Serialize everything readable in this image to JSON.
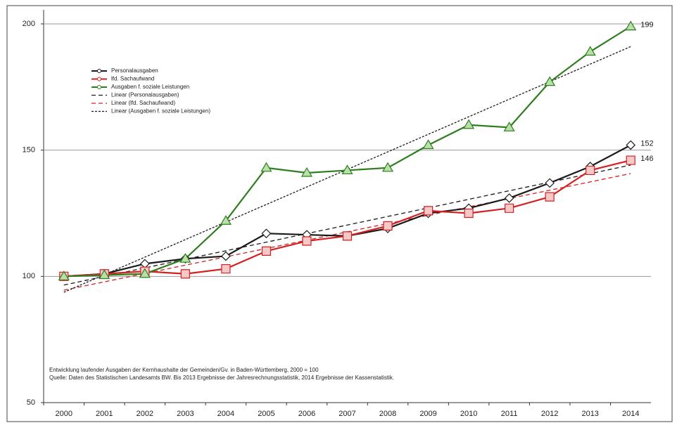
{
  "chart_data": {
    "type": "line",
    "categories": [
      "2000",
      "2001",
      "2002",
      "2003",
      "2004",
      "2005",
      "2006",
      "2007",
      "2008",
      "2009",
      "2010",
      "2011",
      "2012",
      "2013",
      "2014"
    ],
    "series": [
      {
        "name": "Personalausgaben",
        "color": "#1a1a1a",
        "marker": "diamond",
        "values": [
          100,
          101,
          105,
          107,
          108,
          117,
          116.5,
          116,
          119,
          125,
          127,
          131,
          137,
          143.5,
          152
        ]
      },
      {
        "name": "lfd. Sachaufwand",
        "color": "#d42020",
        "marker": "square",
        "values": [
          100,
          101,
          102,
          101,
          103,
          110,
          114,
          116,
          120,
          126,
          125,
          127,
          131.5,
          142,
          146
        ]
      },
      {
        "name": "Ausgaben f. soziale Leistungen",
        "color": "#2e7d1e",
        "marker": "triangle",
        "values": [
          100,
          100.5,
          101,
          107,
          122,
          143,
          141,
          142,
          143,
          152,
          160,
          159,
          177,
          189,
          199
        ]
      }
    ],
    "trendlines": [
      {
        "name": "Linear (Personalausgaben)",
        "of": 0,
        "color": "#1a1a1a",
        "dash": "6 4"
      },
      {
        "name": "Linear (lfd. Sachaufwand)",
        "of": 1,
        "color": "#d42020",
        "dash": "6 4"
      },
      {
        "name": "Linear (Ausgaben f. soziale Leistungen)",
        "of": 2,
        "color": "#1a1a1a",
        "dash": "3 2"
      }
    ],
    "end_labels": [
      2,
      0,
      1
    ],
    "ylim": [
      50,
      200
    ],
    "yticks": [
      50,
      100,
      150,
      200
    ],
    "grid": true,
    "notes": [
      "Entwicklung laufender Ausgaben der Kernhaushalte der Gemeinden/Gv. in Baden-Württemberg, 2000 = 100",
      "Quelle: Daten des Statistischen Landesamts BW. Bis 2013 Ergebnisse der Jahresrechnungsstatistik, 2014 Ergebnisse der Kassenstatistik."
    ]
  }
}
